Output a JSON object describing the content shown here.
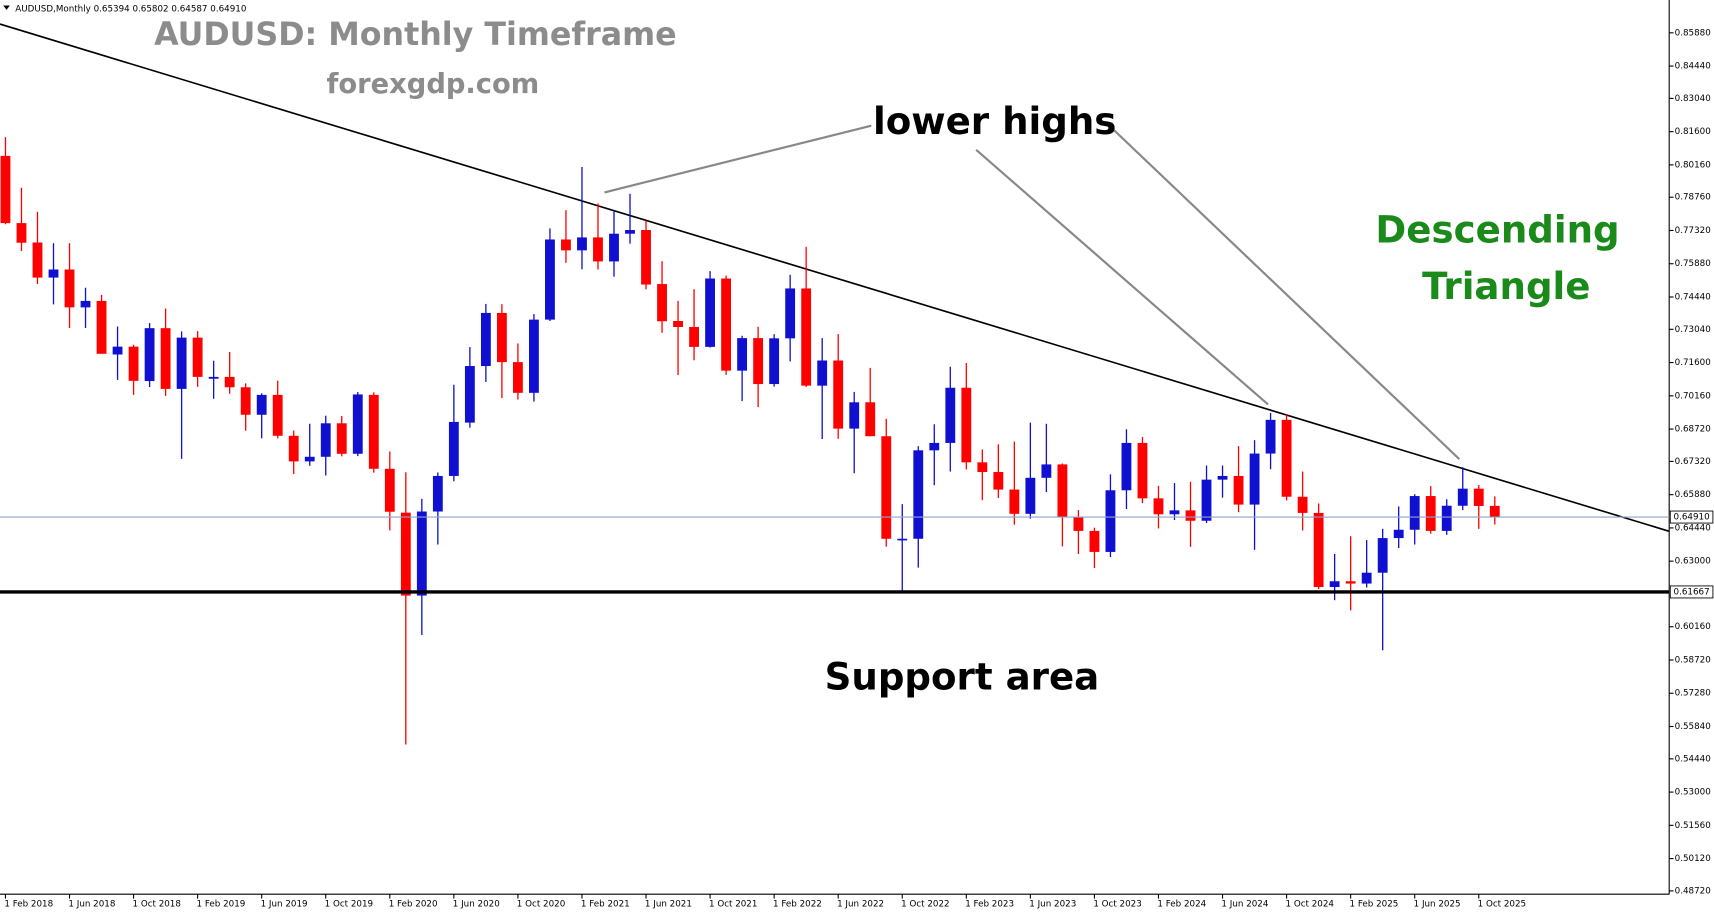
{
  "header": "AUDUSD,Monthly  0.65394 0.65802 0.64587 0.64910",
  "chart_data": {
    "type": "candlestick",
    "title": "AUDUSD: Monthly Timeframe",
    "subtitle": "forexgdp.com",
    "annotations": [
      {
        "text": "lower highs",
        "color": "#000000"
      },
      {
        "text": "Descending",
        "color": "#1a8a1a"
      },
      {
        "text": "Triangle",
        "color": "#1a8a1a"
      },
      {
        "text": "Support area",
        "color": "#000000"
      }
    ],
    "up_color": "#1010d0",
    "down_color": "#ff0000",
    "categories": [
      "1 Feb 2018",
      null,
      null,
      null,
      "1 Jun 2018",
      null,
      null,
      null,
      "1 Oct 2018",
      null,
      null,
      null,
      "1 Feb 2019",
      null,
      null,
      null,
      "1 Jun 2019",
      null,
      null,
      null,
      "1 Oct 2019",
      null,
      null,
      null,
      "1 Feb 2020",
      null,
      null,
      null,
      "1 Jun 2020",
      null,
      null,
      null,
      "1 Oct 2020",
      null,
      null,
      null,
      "1 Feb 2021",
      null,
      null,
      null,
      "1 Jun 2021",
      null,
      null,
      null,
      "1 Oct 2021",
      null,
      null,
      null,
      "1 Feb 2022",
      null,
      null,
      null,
      "1 Jun 2022",
      null,
      null,
      null,
      "1 Oct 2022",
      null,
      null,
      null,
      "1 Feb 2023",
      null,
      null,
      null,
      "1 Jun 2023",
      null,
      null,
      null,
      "1 Oct 2023",
      null,
      null,
      null,
      "1 Feb 2024",
      null,
      null,
      null,
      "1 Jun 2024",
      null,
      null,
      null,
      "1 Oct 2024",
      null,
      null,
      null,
      "1 Feb 2025",
      null,
      null,
      null,
      "1 Jun 2025",
      null,
      null,
      null,
      "1 Oct 2025",
      null
    ],
    "open": [
      0.8055,
      0.7764,
      0.768,
      0.7528,
      0.7563,
      0.7399,
      0.7427,
      0.7195,
      0.7229,
      0.708,
      0.7309,
      0.7046,
      0.7268,
      0.709,
      0.7098,
      0.7053,
      0.6934,
      0.702,
      0.6843,
      0.6732,
      0.6752,
      0.6897,
      0.6765,
      0.702,
      0.67,
      0.651,
      0.6151,
      0.6515,
      0.6669,
      0.69,
      0.7145,
      0.7375,
      0.7162,
      0.7029,
      0.7346,
      0.7693,
      0.7646,
      0.7702,
      0.7598,
      0.7718,
      0.7734,
      0.75,
      0.734,
      0.7314,
      0.7228,
      0.7524,
      0.7125,
      0.7266,
      0.7067,
      0.7265,
      0.7481,
      0.706,
      0.7169,
      0.6874,
      0.6988,
      0.6841,
      0.6397,
      0.6397,
      0.678,
      0.6812,
      0.7051,
      0.6728,
      0.6686,
      0.661,
      0.6505,
      0.6661,
      0.6719,
      0.649,
      0.6431,
      0.634,
      0.6607,
      0.6812,
      0.6572,
      0.6503,
      0.652,
      0.6475,
      0.6653,
      0.6669,
      0.6545,
      0.6766,
      0.6912,
      0.6579,
      0.6509,
      0.6188,
      0.6213,
      0.6203,
      0.625,
      0.64,
      0.6436,
      0.6582,
      0.6431,
      0.654,
      0.6614,
      0.65394
    ],
    "high": [
      0.8136,
      0.7917,
      0.7813,
      0.7677,
      0.7677,
      0.7484,
      0.7453,
      0.7316,
      0.7237,
      0.7331,
      0.7394,
      0.7295,
      0.7296,
      0.7168,
      0.7206,
      0.707,
      0.7027,
      0.7082,
      0.6866,
      0.6895,
      0.693,
      0.6929,
      0.7032,
      0.7031,
      0.6775,
      0.6685,
      0.657,
      0.6684,
      0.7064,
      0.7227,
      0.7414,
      0.7413,
      0.7243,
      0.737,
      0.7741,
      0.782,
      0.8007,
      0.7849,
      0.7819,
      0.7891,
      0.7775,
      0.7599,
      0.7427,
      0.7478,
      0.7556,
      0.7537,
      0.7276,
      0.7315,
      0.7283,
      0.754,
      0.7661,
      0.7266,
      0.7283,
      0.7033,
      0.7137,
      0.6916,
      0.6547,
      0.6798,
      0.6893,
      0.7142,
      0.7158,
      0.6784,
      0.6806,
      0.6818,
      0.69,
      0.6895,
      0.6723,
      0.6521,
      0.6445,
      0.6676,
      0.6871,
      0.6838,
      0.6626,
      0.6638,
      0.6644,
      0.6714,
      0.6714,
      0.6798,
      0.6824,
      0.6942,
      0.6937,
      0.6688,
      0.655,
      0.6331,
      0.6408,
      0.6391,
      0.644,
      0.6537,
      0.659,
      0.6625,
      0.6568,
      0.6707,
      0.663,
      0.65802
    ],
    "low": [
      0.7759,
      0.7643,
      0.75,
      0.7412,
      0.731,
      0.731,
      0.7202,
      0.7085,
      0.702,
      0.7054,
      0.7016,
      0.6743,
      0.7055,
      0.7003,
      0.7025,
      0.6865,
      0.6832,
      0.6832,
      0.6677,
      0.6713,
      0.6671,
      0.6754,
      0.6755,
      0.6683,
      0.6433,
      0.5506,
      0.598,
      0.6372,
      0.6646,
      0.6878,
      0.7076,
      0.7006,
      0.7,
      0.6991,
      0.734,
      0.7592,
      0.7564,
      0.7563,
      0.7532,
      0.7675,
      0.7477,
      0.7289,
      0.7106,
      0.717,
      0.7225,
      0.7107,
      0.6993,
      0.6967,
      0.7056,
      0.7165,
      0.7055,
      0.6829,
      0.683,
      0.6681,
      0.6841,
      0.6363,
      0.617,
      0.6272,
      0.6629,
      0.6688,
      0.6697,
      0.6564,
      0.6574,
      0.6458,
      0.6484,
      0.6599,
      0.6364,
      0.6331,
      0.627,
      0.6318,
      0.6526,
      0.6551,
      0.6442,
      0.6478,
      0.6362,
      0.6465,
      0.6575,
      0.6512,
      0.6349,
      0.6698,
      0.6563,
      0.6433,
      0.6179,
      0.6131,
      0.6087,
      0.6186,
      0.5914,
      0.6357,
      0.6372,
      0.6419,
      0.6414,
      0.6521,
      0.644,
      0.64587
    ],
    "close": [
      0.7764,
      0.7679,
      0.7528,
      0.7563,
      0.7399,
      0.7427,
      0.7198,
      0.7229,
      0.7081,
      0.7309,
      0.7046,
      0.7268,
      0.7098,
      0.7098,
      0.7053,
      0.6934,
      0.702,
      0.6843,
      0.6732,
      0.6752,
      0.6897,
      0.6765,
      0.7022,
      0.67,
      0.6514,
      0.6151,
      0.6515,
      0.6669,
      0.6903,
      0.7145,
      0.7375,
      0.7162,
      0.7029,
      0.7346,
      0.7693,
      0.7646,
      0.7702,
      0.7598,
      0.7718,
      0.7734,
      0.7498,
      0.7339,
      0.7314,
      0.7228,
      0.7524,
      0.7125,
      0.7266,
      0.7067,
      0.7265,
      0.7481,
      0.706,
      0.7169,
      0.6874,
      0.6988,
      0.6841,
      0.6397,
      0.6397,
      0.678,
      0.6812,
      0.7051,
      0.6728,
      0.6686,
      0.661,
      0.6505,
      0.6661,
      0.6719,
      0.649,
      0.6431,
      0.634,
      0.6607,
      0.6812,
      0.6572,
      0.6503,
      0.652,
      0.6475,
      0.6653,
      0.6669,
      0.6545,
      0.6766,
      0.6912,
      0.6579,
      0.6509,
      0.6188,
      0.6213,
      0.6203,
      0.625,
      0.64,
      0.6436,
      0.6582,
      0.6431,
      0.654,
      0.6614,
      0.6539,
      0.6491
    ],
    "ylim": [
      0.48578,
      0.87205
    ],
    "yticks": [
      {
        "value": 0.8588,
        "label": "0.85880"
      },
      {
        "value": 0.8444,
        "label": "0.84440"
      },
      {
        "value": 0.8304,
        "label": "0.83040"
      },
      {
        "value": 0.816,
        "label": "0.81600"
      },
      {
        "value": 0.8016,
        "label": "0.80160"
      },
      {
        "value": 0.7876,
        "label": "0.78760"
      },
      {
        "value": 0.7732,
        "label": "0.77320"
      },
      {
        "value": 0.7588,
        "label": "0.75880"
      },
      {
        "value": 0.7444,
        "label": "0.74440"
      },
      {
        "value": 0.7304,
        "label": "0.73040"
      },
      {
        "value": 0.716,
        "label": "0.71600"
      },
      {
        "value": 0.7016,
        "label": "0.70160"
      },
      {
        "value": 0.6872,
        "label": "0.68720"
      },
      {
        "value": 0.6732,
        "label": "0.67320"
      },
      {
        "value": 0.6588,
        "label": "0.65880"
      },
      {
        "value": 0.6444,
        "label": "0.64440"
      },
      {
        "value": 0.63,
        "label": "0.63000"
      },
      {
        "value": 0.6016,
        "label": "0.60160"
      },
      {
        "value": 0.5872,
        "label": "0.58720"
      },
      {
        "value": 0.5728,
        "label": "0.57280"
      },
      {
        "value": 0.5584,
        "label": "0.55840"
      },
      {
        "value": 0.5444,
        "label": "0.54440"
      },
      {
        "value": 0.53,
        "label": "0.53000"
      },
      {
        "value": 0.5156,
        "label": "0.51560"
      },
      {
        "value": 0.5012,
        "label": "0.50120"
      },
      {
        "value": 0.4872,
        "label": "0.48720"
      }
    ],
    "price_lines": [
      {
        "value": 0.6491,
        "label": "0.64910",
        "color": "#8fa3c8"
      },
      {
        "value": 0.61667,
        "label": "0.61667",
        "color": "#000000"
      }
    ]
  }
}
